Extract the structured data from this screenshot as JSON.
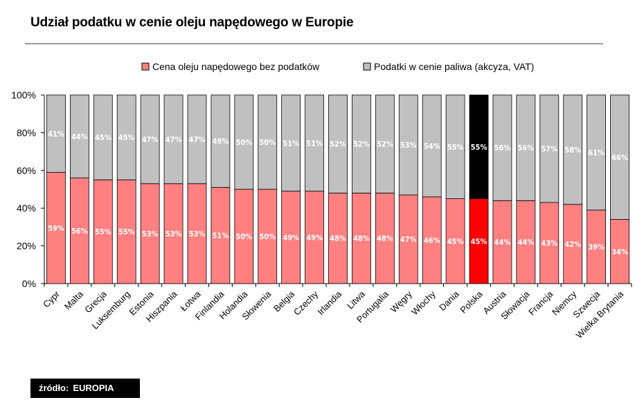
{
  "title": "Udział podatku w cenie oleju napędowego w Europie",
  "source": {
    "label": "źródło:",
    "value": "EUROPIA"
  },
  "colors": {
    "base": "#ff8080",
    "tax": "#c0c0c0",
    "highlight_base": "#ff0000",
    "highlight_tax": "#000000",
    "axis": "#000000",
    "label_text": "#ffffff"
  },
  "chart_data": {
    "type": "bar",
    "stacked": true,
    "percent_stacked": true,
    "categories": [
      "Cypr",
      "Malta",
      "Grecja",
      "Luksemburg",
      "Estonia",
      "Hiszpania",
      "Łotwa",
      "Finlandia",
      "Holandia",
      "Słowenia",
      "Belgia",
      "Czechy",
      "Irlandia",
      "Litwa",
      "Portugalia",
      "Węgry",
      "Włochy",
      "Dania",
      "Polska",
      "Austria",
      "Słowacja",
      "Francja",
      "Niemcy",
      "Szwecja",
      "Wielka Brytania"
    ],
    "series": [
      {
        "name": "Cena oleju napędowego bez podatków",
        "values": [
          59,
          56,
          55,
          55,
          53,
          53,
          53,
          51,
          50,
          50,
          49,
          49,
          48,
          48,
          48,
          47,
          46,
          45,
          45,
          44,
          44,
          43,
          42,
          39,
          34
        ],
        "labels": [
          "59%",
          "56%",
          "55%",
          "55%",
          "53%",
          "53%",
          "53%",
          "51%",
          "50%",
          "50%",
          "49%",
          "49%",
          "48%",
          "48%",
          "48%",
          "47%",
          "46%",
          "45%",
          "45%",
          "44%",
          "44%",
          "43%",
          "42%",
          "39%",
          "34%"
        ]
      },
      {
        "name": "Podatki w cenie paliwa (akcyza, VAT)",
        "values": [
          41,
          44,
          45,
          45,
          47,
          47,
          47,
          49,
          50,
          50,
          51,
          51,
          52,
          52,
          52,
          53,
          54,
          55,
          55,
          56,
          56,
          57,
          58,
          61,
          66
        ],
        "labels": [
          "41%",
          "44%",
          "45%",
          "45%",
          "47%",
          "47%",
          "47%",
          "49%",
          "50%",
          "50%",
          "51%",
          "51%",
          "52%",
          "52%",
          "52%",
          "53%",
          "54%",
          "55%",
          "55%",
          "56%",
          "56%",
          "57%",
          "58%",
          "61%",
          "66%"
        ]
      }
    ],
    "highlight_category": "Polska",
    "ylim": [
      0,
      100
    ],
    "yticks": [
      "0%",
      "20%",
      "40%",
      "60%",
      "80%",
      "100%"
    ],
    "legend_position": "top"
  }
}
